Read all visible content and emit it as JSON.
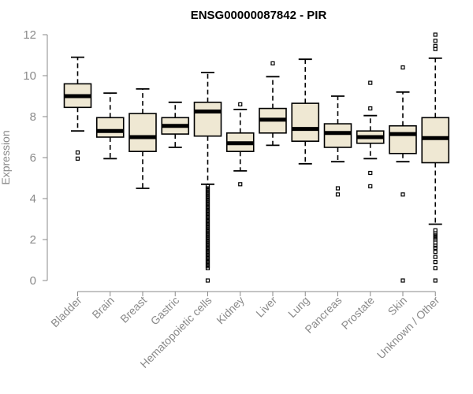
{
  "chart_data": {
    "type": "boxplot",
    "title": "ENSG00000087842 - PIR",
    "xlabel": "",
    "ylabel": "Expression",
    "ylim": [
      0,
      12
    ],
    "yticks": [
      0,
      2,
      4,
      6,
      8,
      10,
      12
    ],
    "box_fill": "#efe8d3",
    "box_stroke": "#000000",
    "axis_color": "#8a8a8a",
    "categories": [
      "Bladder",
      "Brain",
      "Breast",
      "Gastric",
      "Hematopoietic cells",
      "Kidney",
      "Liver",
      "Lung",
      "Pancreas",
      "Prostate",
      "Skin",
      "Unknown / Other"
    ],
    "boxes": [
      {
        "category": "Bladder",
        "whisker_low": 7.3,
        "q1": 8.45,
        "median": 9.0,
        "q3": 9.6,
        "whisker_high": 10.9,
        "outliers": [
          6.25,
          5.95
        ]
      },
      {
        "category": "Brain",
        "whisker_low": 5.95,
        "q1": 7.0,
        "median": 7.3,
        "q3": 7.95,
        "whisker_high": 9.15,
        "outliers": []
      },
      {
        "category": "Breast",
        "whisker_low": 4.5,
        "q1": 6.3,
        "median": 7.0,
        "q3": 8.15,
        "whisker_high": 9.35,
        "outliers": []
      },
      {
        "category": "Gastric",
        "whisker_low": 6.5,
        "q1": 7.15,
        "median": 7.55,
        "q3": 7.95,
        "whisker_high": 8.7,
        "outliers": []
      },
      {
        "category": "Hematopoietic cells",
        "whisker_low": 4.7,
        "q1": 7.05,
        "median": 8.25,
        "q3": 8.7,
        "whisker_high": 10.15,
        "outliers": [
          4.6,
          4.5,
          4.4,
          4.3,
          4.2,
          4.1,
          4.0,
          3.9,
          3.8,
          3.7,
          3.6,
          3.5,
          3.4,
          3.3,
          3.2,
          3.1,
          3.0,
          2.9,
          2.8,
          2.7,
          2.6,
          2.5,
          2.4,
          2.3,
          2.2,
          2.1,
          2.0,
          1.9,
          1.8,
          1.7,
          1.6,
          1.5,
          1.4,
          1.3,
          1.2,
          1.1,
          1.0,
          0.9,
          0.8,
          0.7,
          0.6,
          0.0
        ]
      },
      {
        "category": "Kidney",
        "whisker_low": 5.35,
        "q1": 6.3,
        "median": 6.7,
        "q3": 7.2,
        "whisker_high": 8.35,
        "outliers": [
          8.6,
          4.7
        ]
      },
      {
        "category": "Liver",
        "whisker_low": 6.6,
        "q1": 7.2,
        "median": 7.85,
        "q3": 8.4,
        "whisker_high": 9.95,
        "outliers": [
          10.6
        ]
      },
      {
        "category": "Lung",
        "whisker_low": 5.7,
        "q1": 6.8,
        "median": 7.4,
        "q3": 8.65,
        "whisker_high": 10.8,
        "outliers": []
      },
      {
        "category": "Pancreas",
        "whisker_low": 5.8,
        "q1": 6.5,
        "median": 7.2,
        "q3": 7.65,
        "whisker_high": 9.0,
        "outliers": [
          4.5,
          4.2
        ]
      },
      {
        "category": "Prostate",
        "whisker_low": 5.95,
        "q1": 6.7,
        "median": 7.0,
        "q3": 7.3,
        "whisker_high": 8.05,
        "outliers": [
          9.65,
          8.4,
          5.25,
          4.6
        ]
      },
      {
        "category": "Skin",
        "whisker_low": 5.8,
        "q1": 6.2,
        "median": 7.15,
        "q3": 7.55,
        "whisker_high": 9.2,
        "outliers": [
          10.4,
          4.2,
          0.0
        ]
      },
      {
        "category": "Unknown / Other",
        "whisker_low": 2.75,
        "q1": 5.75,
        "median": 6.95,
        "q3": 7.95,
        "whisker_high": 10.85,
        "outliers": [
          12.0,
          11.7,
          11.45,
          11.3,
          2.45,
          2.3,
          2.2,
          2.1,
          2.0,
          1.85,
          1.7,
          1.6,
          1.4,
          1.15,
          0.9,
          0.6,
          0.0
        ]
      }
    ]
  }
}
